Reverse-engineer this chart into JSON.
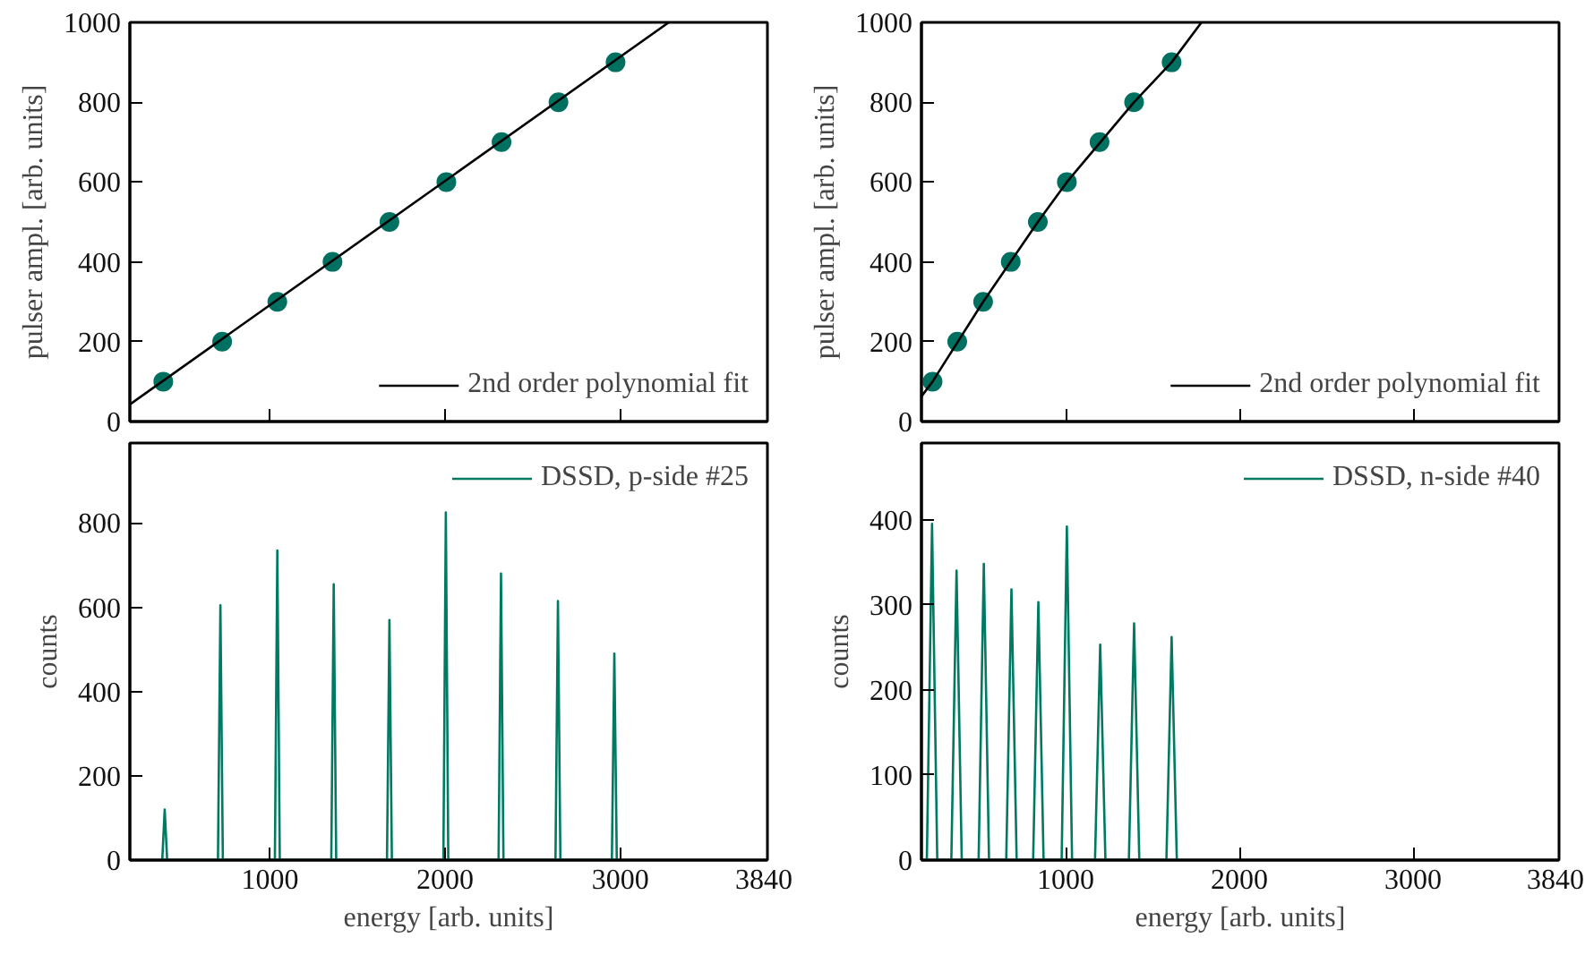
{
  "chart_data": [
    {
      "type": "scatter",
      "ylabel": "pulser ampl. [arb. units]",
      "xlim": [
        200,
        3840
      ],
      "xticks": [
        1000,
        2000,
        3000,
        3840
      ],
      "ylim": [
        0,
        1000
      ],
      "yticks": [
        0,
        200,
        400,
        600,
        800,
        1000
      ],
      "tick_labels": "y",
      "grid": false,
      "legend": "bottom right",
      "series": [
        {
          "color": "#007060",
          "marker": "circle",
          "x": [
            391,
            727,
            1042,
            1357,
            1682,
            2007,
            2322,
            2647,
            2973
          ],
          "values": [
            100,
            200,
            300,
            400,
            500,
            600,
            700,
            800,
            900
          ]
        },
        {
          "type": "line",
          "name": "2nd order polynomial fit",
          "color": "#000000",
          "x": [
            200,
            3277
          ],
          "values": [
            43,
            1000
          ]
        }
      ]
    },
    {
      "type": "scatter",
      "ylabel": "pulser ampl. [arb. units]",
      "xlim": [
        170,
        3840
      ],
      "xticks": [
        1000,
        2000,
        3000,
        3840
      ],
      "ylim": [
        0,
        1000
      ],
      "yticks": [
        0,
        200,
        400,
        600,
        800,
        1000
      ],
      "tick_labels": "y",
      "grid": false,
      "legend": "bottom right",
      "series": [
        {
          "color": "#007060",
          "marker": "circle",
          "x": [
            234,
            376,
            525,
            684,
            840,
            1007,
            1195,
            1394,
            1610
          ],
          "values": [
            100,
            200,
            300,
            400,
            500,
            600,
            700,
            800,
            900
          ]
        },
        {
          "type": "line",
          "name": "2nd order polynomial fit",
          "color": "#000000",
          "x": [
            170,
            234,
            525,
            840,
            1007,
            1394,
            1610,
            1782
          ],
          "values": [
            63,
            100,
            300,
            500,
            600,
            800,
            900,
            1000
          ]
        }
      ]
    },
    {
      "type": "line",
      "xlabel": "energy [arb. units]",
      "ylabel": "counts",
      "xlim": [
        200,
        3840
      ],
      "xticks": [
        1000,
        2000,
        3000,
        3840
      ],
      "ylim": [
        0,
        990
      ],
      "yticks": [
        0,
        200,
        400,
        600,
        800
      ],
      "grid": false,
      "legend": "top right",
      "series": [
        {
          "name": "DSSD, p-side #25",
          "color": "#007a63",
          "x": [
            385,
            399,
            413,
            703,
            717,
            731,
            1028,
            1042,
            1056,
            1350,
            1364,
            1378,
            1668,
            1682,
            1696,
            1990,
            2004,
            2018,
            2305,
            2319,
            2333,
            2630,
            2644,
            2658,
            2952,
            2966,
            2980
          ],
          "values": [
            0,
            120,
            0,
            0,
            605,
            0,
            0,
            735,
            0,
            0,
            655,
            0,
            0,
            570,
            0,
            0,
            825,
            0,
            0,
            680,
            0,
            0,
            615,
            0,
            0,
            490,
            0
          ]
        }
      ]
    },
    {
      "type": "line",
      "xlabel": "energy [arb. units]",
      "ylabel": "counts",
      "xlim": [
        170,
        3840
      ],
      "xticks": [
        1000,
        2000,
        3000,
        3840
      ],
      "ylim": [
        0,
        490
      ],
      "yticks": [
        0,
        100,
        200,
        300,
        400
      ],
      "grid": false,
      "legend": "top right",
      "series": [
        {
          "name": "DSSD, n-side #40",
          "color": "#007a63",
          "x": [
            201,
            231,
            261,
            342,
            372,
            402,
            499,
            529,
            559,
            658,
            688,
            718,
            813,
            843,
            873,
            977,
            1007,
            1037,
            1169,
            1199,
            1229,
            1364,
            1394,
            1424,
            1580,
            1610,
            1640
          ],
          "values": [
            0,
            395,
            0,
            0,
            340,
            0,
            0,
            348,
            0,
            0,
            318,
            0,
            0,
            303,
            0,
            0,
            392,
            0,
            0,
            253,
            0,
            0,
            278,
            0,
            0,
            262,
            0
          ]
        }
      ]
    }
  ]
}
